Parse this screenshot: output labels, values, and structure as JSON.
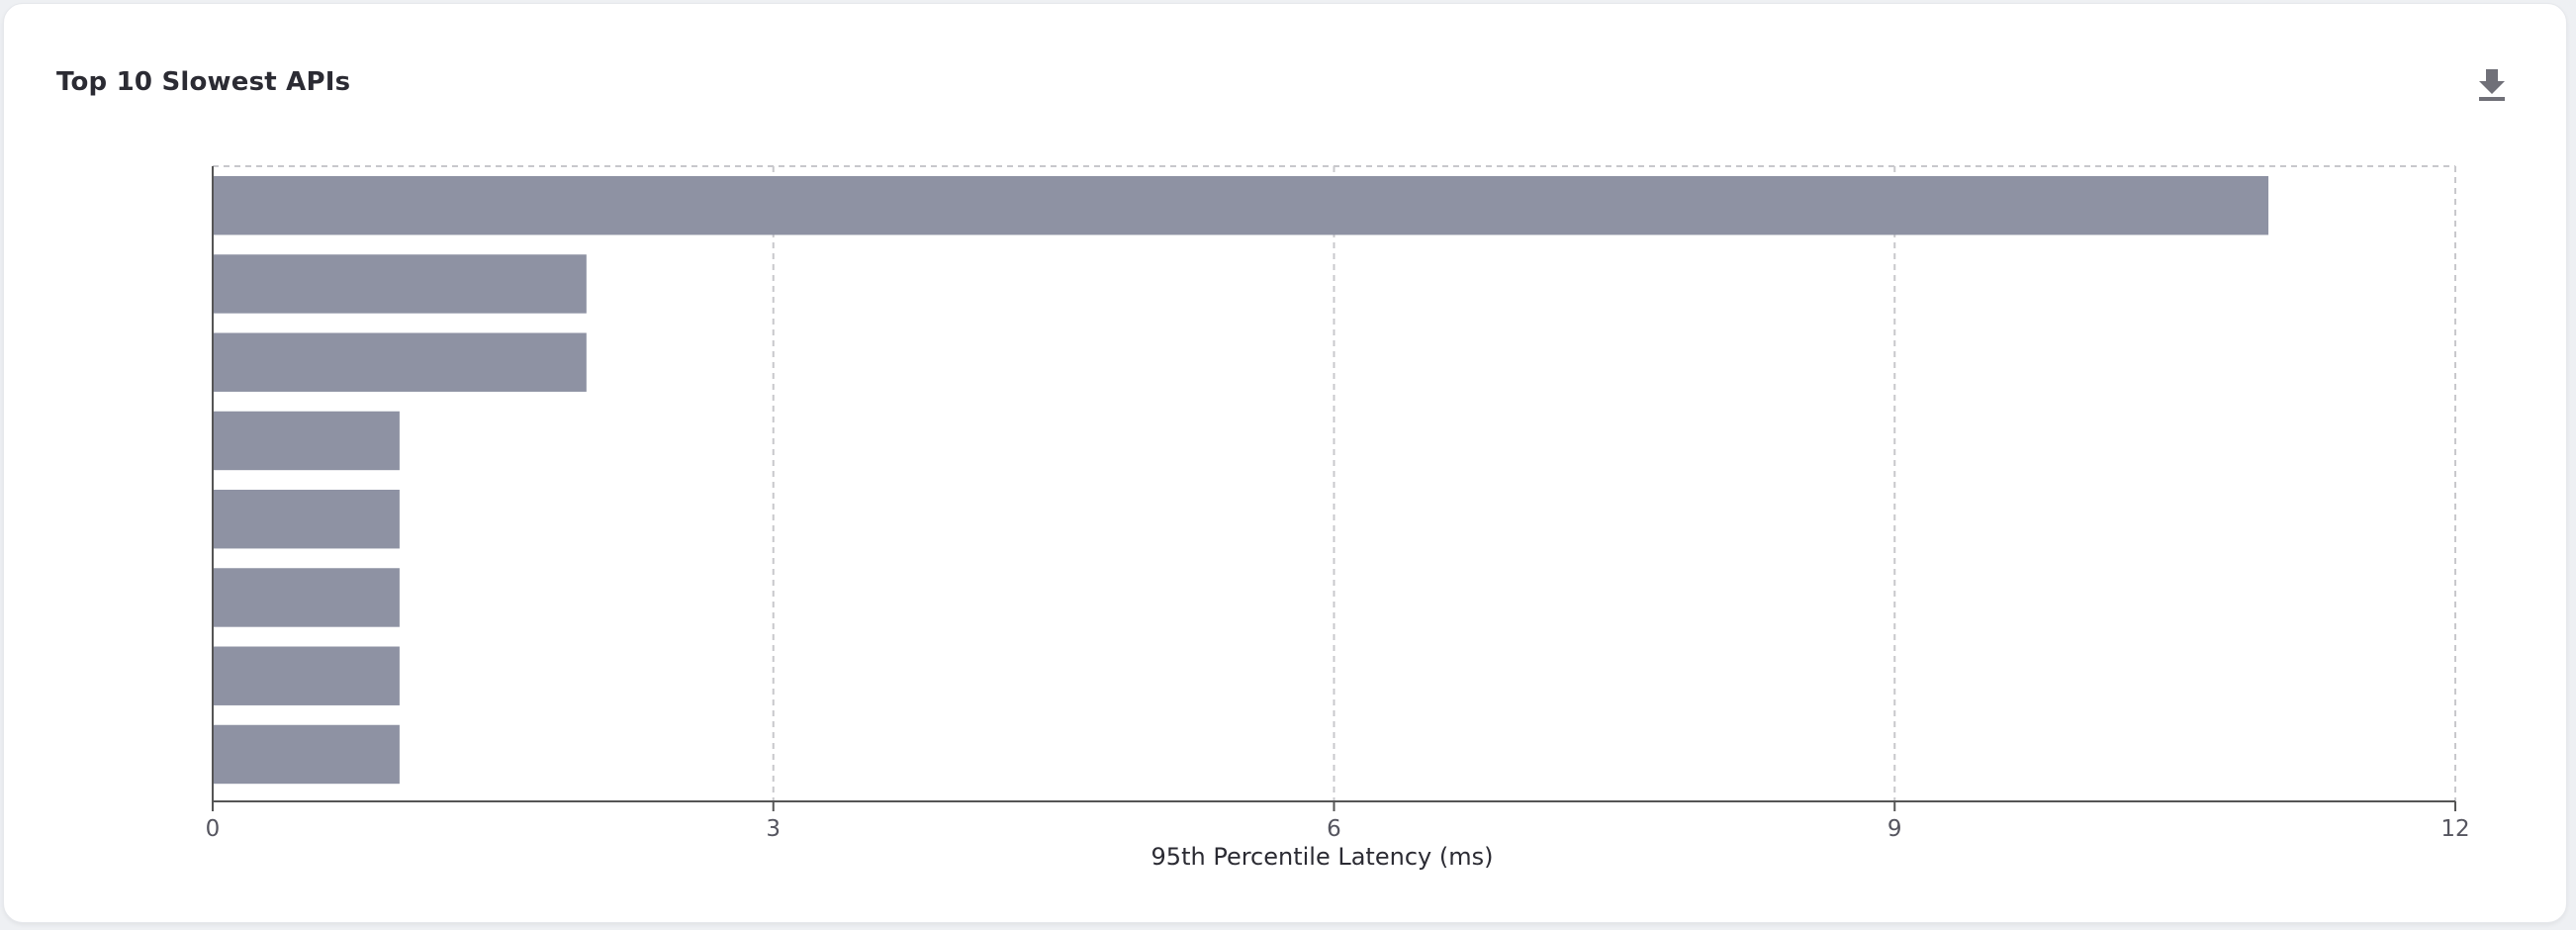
{
  "card": {
    "title": "Top 10 Slowest APIs"
  },
  "toolbar": {
    "download_icon": "download-icon"
  },
  "colors": {
    "bar": "#8e92a3",
    "grid": "#c8c8cc",
    "axis": "#555555"
  },
  "chart_data": {
    "type": "bar",
    "orientation": "horizontal",
    "title": "Top 10 Slowest APIs",
    "xlabel": "95th Percentile Latency (ms)",
    "ylabel": "",
    "xlim": [
      0,
      12
    ],
    "xticks": [
      0,
      3,
      6,
      9,
      12
    ],
    "xtick_labels": [
      "0",
      "3",
      "6",
      "9",
      "12"
    ],
    "categories": [
      "",
      "",
      "",
      "",
      "",
      "",
      "",
      ""
    ],
    "values": [
      11,
      2,
      2,
      1,
      1,
      1,
      1,
      1
    ],
    "grid": true
  }
}
